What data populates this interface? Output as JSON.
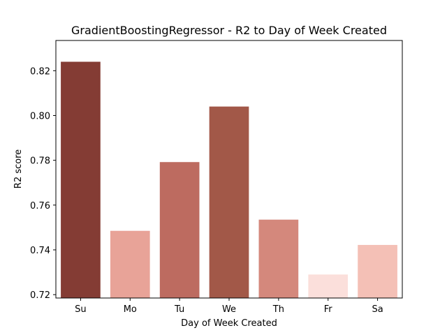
{
  "chart_data": {
    "type": "bar",
    "title": "GradientBoostingRegressor - R2 to Day of Week Created",
    "xlabel": "Day of Week Created",
    "ylabel": "R2 score",
    "categories": [
      "Su",
      "Mo",
      "Tu",
      "We",
      "Th",
      "Fr",
      "Sa"
    ],
    "values": [
      0.824,
      0.7485,
      0.7792,
      0.804,
      0.7535,
      0.729,
      0.7422
    ],
    "colors": [
      "#843c34",
      "#e8a398",
      "#bd6b60",
      "#a25848",
      "#d4887c",
      "#fbdfdb",
      "#f4c0b6"
    ],
    "ylim": [
      0.7185,
      0.8335
    ],
    "yticks": [
      0.72,
      0.74,
      0.76,
      0.78,
      0.8,
      0.82
    ],
    "ytick_labels": [
      "0.72",
      "0.74",
      "0.76",
      "0.78",
      "0.80",
      "0.82"
    ],
    "grid": false,
    "legend": "none"
  }
}
